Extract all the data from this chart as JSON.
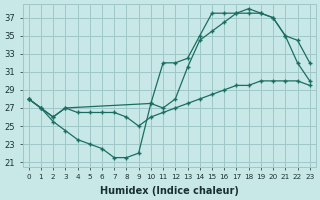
{
  "xlabel": "Humidex (Indice chaleur)",
  "bg_color": "#c8e8e8",
  "grid_color": "#a0c8c8",
  "line_color": "#1a6e60",
  "xlim": [
    -0.5,
    23.5
  ],
  "ylim": [
    20.5,
    38.5
  ],
  "xticks": [
    0,
    1,
    2,
    3,
    4,
    5,
    6,
    7,
    8,
    9,
    10,
    11,
    12,
    13,
    14,
    15,
    16,
    17,
    18,
    19,
    20,
    21,
    22,
    23
  ],
  "yticks": [
    21,
    23,
    25,
    27,
    29,
    31,
    33,
    35,
    37
  ],
  "line1_x": [
    0,
    1,
    2,
    3,
    4,
    5,
    6,
    7,
    8,
    9,
    10,
    11,
    12,
    13,
    14,
    15,
    16,
    17,
    18,
    19,
    20,
    21,
    22,
    23
  ],
  "line1_y": [
    28,
    27,
    26,
    27,
    26.5,
    26.5,
    26.5,
    26.5,
    26,
    25,
    26,
    26.5,
    27,
    27.5,
    28,
    28.5,
    29,
    29.5,
    29.5,
    30,
    30,
    30,
    30,
    29.5
  ],
  "line2_x": [
    0,
    1,
    2,
    3,
    10,
    11,
    12,
    13,
    14,
    15,
    16,
    17,
    18,
    19,
    20,
    21,
    22,
    23
  ],
  "line2_y": [
    28,
    27,
    26,
    27,
    27.5,
    32,
    32,
    32.5,
    35,
    37.5,
    37.5,
    37.5,
    38,
    37.5,
    37,
    35,
    34.5,
    32
  ],
  "line3_x": [
    0,
    1,
    2,
    3,
    4,
    5,
    6,
    7,
    8,
    9,
    10,
    11,
    12,
    13,
    14,
    15,
    16,
    17,
    18,
    19,
    20,
    21,
    22,
    23
  ],
  "line3_y": [
    28,
    27,
    25.5,
    24.5,
    23.5,
    23,
    22.5,
    21.5,
    21.5,
    22,
    27.5,
    27,
    28,
    31.5,
    34.5,
    35.5,
    36.5,
    37.5,
    37.5,
    37.5,
    37,
    35,
    32,
    30
  ]
}
